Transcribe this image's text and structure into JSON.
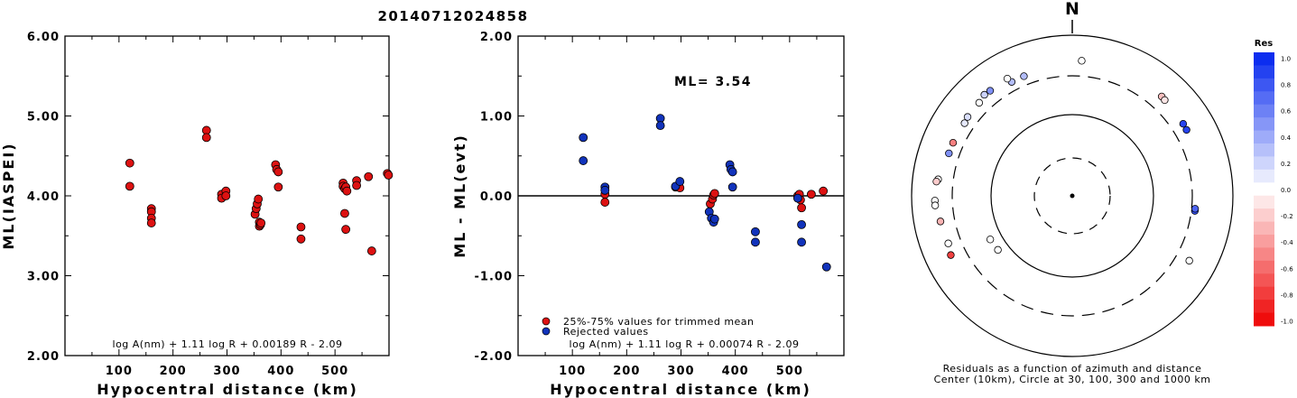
{
  "title": "20140712024858",
  "chart_data": [
    {
      "type": "scatter",
      "xlabel": "Hypocentral distance (km)",
      "ylabel": "ML(IASPEI)",
      "xlim": [
        0,
        600
      ],
      "ylim": [
        2.0,
        6.0
      ],
      "xticks": [
        "100",
        "200",
        "300",
        "400",
        "500"
      ],
      "yticks": [
        "2.00",
        "3.00",
        "4.00",
        "5.00",
        "6.00"
      ],
      "formula": "log A(nm) + 1.11 log R + 0.00189 R - 2.09",
      "marker_color": "#dd1111",
      "series": [
        {
          "x": [
            120,
            120,
            160,
            160,
            160,
            160,
            262,
            262,
            290,
            290,
            298,
            298,
            352,
            354,
            356,
            358,
            360,
            360,
            362,
            363,
            390,
            392,
            395,
            395,
            437,
            437,
            515,
            515,
            518,
            518,
            520,
            520,
            522,
            540,
            540,
            562,
            568,
            597,
            599
          ],
          "y": [
            4.41,
            4.12,
            3.84,
            3.8,
            3.72,
            3.66,
            4.82,
            4.73,
            4.02,
            3.97,
            4.06,
            4.0,
            3.77,
            3.84,
            3.9,
            3.96,
            3.67,
            3.62,
            3.64,
            3.66,
            4.39,
            4.33,
            4.3,
            4.11,
            3.61,
            3.46,
            4.16,
            4.12,
            4.09,
            3.78,
            4.11,
            3.58,
            4.06,
            4.19,
            4.13,
            4.24,
            3.31,
            4.28,
            4.26
          ]
        }
      ]
    },
    {
      "type": "scatter",
      "xlabel": "Hypocentral distance (km)",
      "ylabel": "ML - ML(evt)",
      "xlim": [
        0,
        600
      ],
      "ylim": [
        -2.0,
        2.0
      ],
      "xticks": [
        "100",
        "200",
        "300",
        "400",
        "500"
      ],
      "yticks": [
        "-2.00",
        "-1.00",
        "0.00",
        "1.00",
        "2.00"
      ],
      "annotation": "ML= 3.54",
      "formula": "log A(nm) + 1.11 log R + 0.00074 R - 2.09",
      "legend_position": "bottom-left",
      "series": [
        {
          "name": "25%-75% values for trimmed mean",
          "color": "#dd1111",
          "x": [
            160,
            160,
            290,
            298,
            354,
            358,
            360,
            362,
            515,
            518,
            520,
            522,
            540,
            562
          ],
          "y": [
            0.02,
            -0.08,
            0.11,
            0.1,
            -0.1,
            -0.04,
            0.01,
            0.03,
            0.0,
            0.02,
            -0.05,
            -0.15,
            0.02,
            0.06
          ]
        },
        {
          "name": "Rejected values",
          "color": "#1133bb",
          "x": [
            120,
            120,
            160,
            160,
            262,
            262,
            290,
            298,
            352,
            356,
            360,
            362,
            390,
            392,
            395,
            395,
            437,
            437,
            515,
            522,
            522,
            568
          ],
          "y": [
            0.73,
            0.44,
            0.11,
            0.07,
            0.97,
            0.88,
            0.12,
            0.18,
            -0.2,
            -0.28,
            -0.33,
            -0.29,
            0.39,
            0.33,
            0.3,
            0.11,
            -0.45,
            -0.58,
            -0.03,
            -0.36,
            -0.58,
            -0.89
          ]
        }
      ]
    },
    {
      "type": "scatter",
      "title": "N",
      "caption_line1": "Residuals as a function of azimuth and distance",
      "caption_line2": "Center (10km), Circle at 30, 100, 300 and 1000 km",
      "colorbar_title": "Res",
      "colorbar_ticks": [
        "1.0",
        "0.8",
        "0.6",
        "0.4",
        "0.2",
        "0.0",
        "-0.2",
        "-0.4",
        "-0.6",
        "-0.8",
        "-1.0"
      ],
      "colorscale": {
        "positive": "#0022ee",
        "zero": "#ffffff",
        "negative": "#ee0000"
      },
      "rings_km": [
        10,
        30,
        100,
        300,
        1000
      ],
      "points": {
        "azimuth_deg": [
          4,
          338,
          332,
          331,
          322,
          319,
          315,
          307,
          304,
          294,
          289,
          277,
          276,
          268,
          266,
          259,
          249,
          244,
          242,
          234,
          42,
          44,
          57,
          60,
          97,
          96,
          119
        ],
        "distance_km": [
          565,
          455,
          455,
          540,
          530,
          540,
          500,
          490,
          470,
          480,
          480,
          560,
          585,
          600,
          600,
          545,
          520,
          560,
          160,
          155,
          535,
          525,
          510,
          505,
          360,
          360,
          537
        ],
        "residual": [
          0.0,
          0.3,
          0.3,
          0.0,
          0.5,
          0.2,
          0.0,
          0.15,
          0.1,
          -0.5,
          0.5,
          0.0,
          -0.2,
          0.0,
          0.0,
          -0.3,
          0.0,
          -0.75,
          0.0,
          0.0,
          -0.25,
          -0.1,
          0.85,
          0.85,
          0.8,
          0.7,
          0.0
        ]
      }
    }
  ]
}
